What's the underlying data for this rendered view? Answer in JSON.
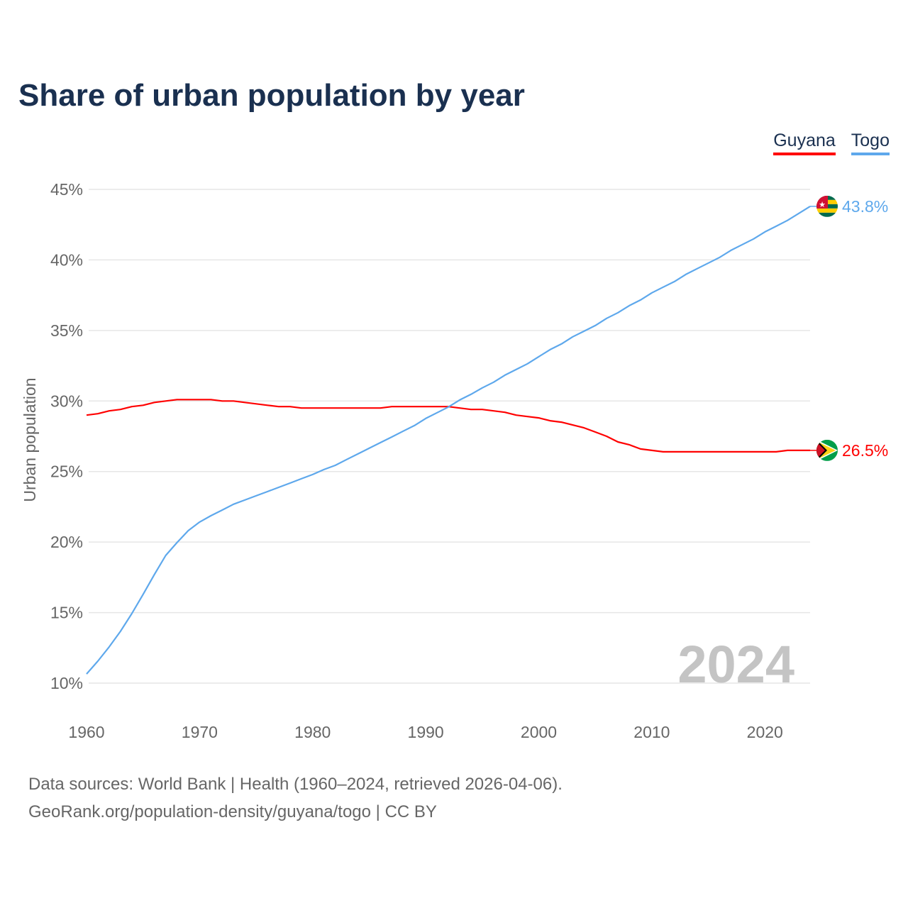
{
  "chart_data": {
    "type": "line",
    "title": "Share of urban population by year",
    "xlabel": "",
    "ylabel": "Urban population",
    "xlim": [
      1960,
      2024
    ],
    "ylim": [
      10,
      45
    ],
    "yticks": [
      "10%",
      "15%",
      "20%",
      "25%",
      "30%",
      "35%",
      "40%",
      "45%"
    ],
    "ytick_values": [
      10,
      15,
      20,
      25,
      30,
      35,
      40,
      45
    ],
    "xticks": [
      "1960",
      "1970",
      "1980",
      "1990",
      "2000",
      "2010",
      "2020"
    ],
    "xtick_values": [
      1960,
      1970,
      1980,
      1990,
      2000,
      2010,
      2020
    ],
    "grid": true,
    "legend_placement": "top-right",
    "year_watermark": "2024",
    "x": [
      1960,
      1961,
      1962,
      1963,
      1964,
      1965,
      1966,
      1967,
      1968,
      1969,
      1970,
      1971,
      1972,
      1973,
      1974,
      1975,
      1976,
      1977,
      1978,
      1979,
      1980,
      1981,
      1982,
      1983,
      1984,
      1985,
      1986,
      1987,
      1988,
      1989,
      1990,
      1991,
      1992,
      1993,
      1994,
      1995,
      1996,
      1997,
      1998,
      1999,
      2000,
      2001,
      2002,
      2003,
      2004,
      2005,
      2006,
      2007,
      2008,
      2009,
      2010,
      2011,
      2012,
      2013,
      2014,
      2015,
      2016,
      2017,
      2018,
      2019,
      2020,
      2021,
      2022,
      2023,
      2024
    ],
    "series": [
      {
        "name": "Guyana",
        "color": "#ff0000",
        "end_label": "26.5%",
        "values": [
          29.0,
          29.1,
          29.3,
          29.4,
          29.6,
          29.7,
          29.9,
          30.0,
          30.1,
          30.1,
          30.1,
          30.1,
          30.0,
          30.0,
          29.9,
          29.8,
          29.7,
          29.6,
          29.6,
          29.5,
          29.5,
          29.5,
          29.5,
          29.5,
          29.5,
          29.5,
          29.5,
          29.6,
          29.6,
          29.6,
          29.6,
          29.6,
          29.6,
          29.5,
          29.4,
          29.4,
          29.3,
          29.2,
          29.0,
          28.9,
          28.8,
          28.6,
          28.5,
          28.3,
          28.1,
          27.8,
          27.5,
          27.1,
          26.9,
          26.6,
          26.5,
          26.4,
          26.4,
          26.4,
          26.4,
          26.4,
          26.4,
          26.4,
          26.4,
          26.4,
          26.4,
          26.4,
          26.5,
          26.5,
          26.5
        ]
      },
      {
        "name": "Togo",
        "color": "#5ea8ec",
        "end_label": "43.8%",
        "values": [
          10.65,
          11.56,
          12.57,
          13.67,
          14.93,
          16.29,
          17.7,
          19.05,
          19.96,
          20.81,
          21.42,
          21.87,
          22.27,
          22.68,
          22.98,
          23.28,
          23.58,
          23.88,
          24.18,
          24.49,
          24.79,
          25.14,
          25.44,
          25.85,
          26.25,
          26.65,
          27.05,
          27.45,
          27.86,
          28.26,
          28.76,
          29.17,
          29.57,
          30.07,
          30.47,
          30.93,
          31.33,
          31.83,
          32.23,
          32.64,
          33.14,
          33.64,
          34.04,
          34.55,
          34.95,
          35.35,
          35.86,
          36.26,
          36.76,
          37.16,
          37.67,
          38.07,
          38.47,
          38.97,
          39.38,
          39.78,
          40.18,
          40.68,
          41.09,
          41.49,
          41.99,
          42.39,
          42.8,
          43.3,
          43.8
        ]
      }
    ]
  },
  "footer": {
    "line1": "Data sources: World Bank | Health (1960–2024, retrieved 2026-04-06).",
    "line2": "GeoRank.org/population-density/guyana/togo | CC BY"
  }
}
